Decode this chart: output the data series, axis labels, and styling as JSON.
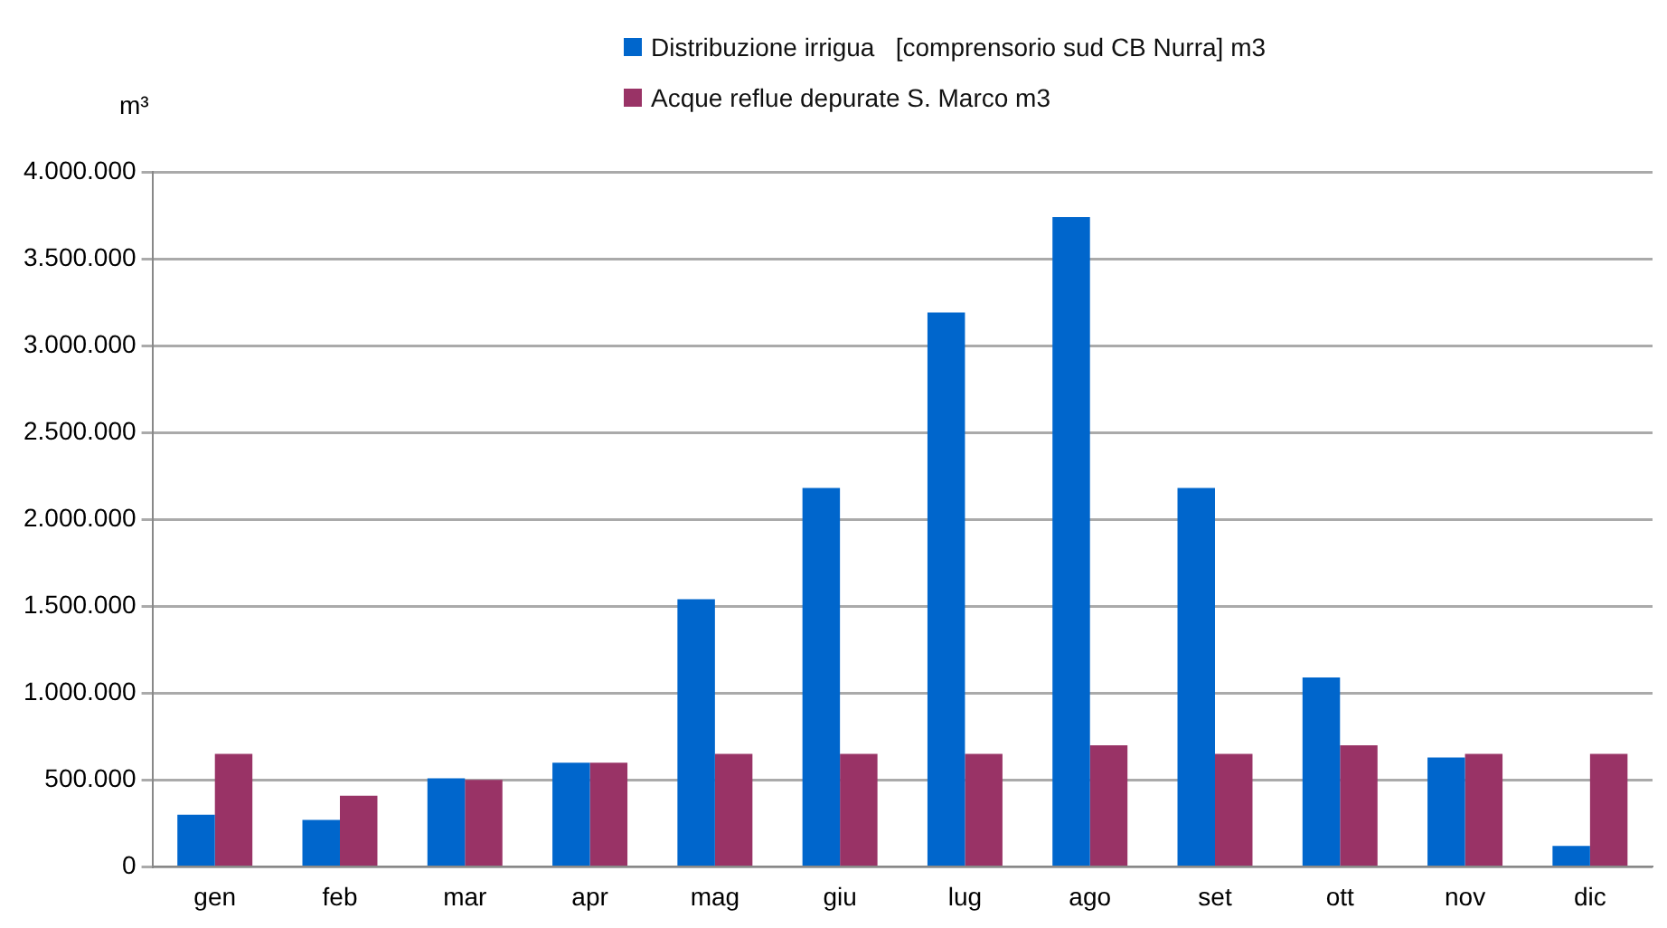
{
  "chart_data": {
    "type": "bar",
    "ylabel": "m³",
    "categories": [
      "gen",
      "feb",
      "mar",
      "apr",
      "mag",
      "giu",
      "lug",
      "ago",
      "set",
      "ott",
      "nov",
      "dic"
    ],
    "series": [
      {
        "name": "Distribuzione irrigua   [comprensorio sud CB Nurra] m3",
        "color": "#0066cc",
        "values": [
          300000,
          270000,
          510000,
          600000,
          1540000,
          2180000,
          3190000,
          3740000,
          2180000,
          1090000,
          630000,
          120000
        ]
      },
      {
        "name": "Acque reflue depurate S. Marco m3",
        "color": "#993366",
        "values": [
          650000,
          410000,
          500000,
          600000,
          650000,
          650000,
          650000,
          700000,
          650000,
          700000,
          650000,
          650000
        ]
      }
    ],
    "ylim": [
      0,
      4000000
    ],
    "yticks": [
      0,
      {
        "value": 500000,
        "label": "500.000"
      },
      {
        "value": 1000000,
        "label": "1.000.000"
      },
      {
        "value": 1500000,
        "label": "1.500.000"
      },
      {
        "value": 2000000,
        "label": "2.000.000"
      },
      {
        "value": 2500000,
        "label": "2.500.000"
      },
      {
        "value": 3000000,
        "label": "3.000.000"
      },
      {
        "value": 3500000,
        "label": "3.500.000"
      },
      {
        "value": 4000000,
        "label": "4.000.000"
      }
    ],
    "grid": "y",
    "legend": "top"
  }
}
